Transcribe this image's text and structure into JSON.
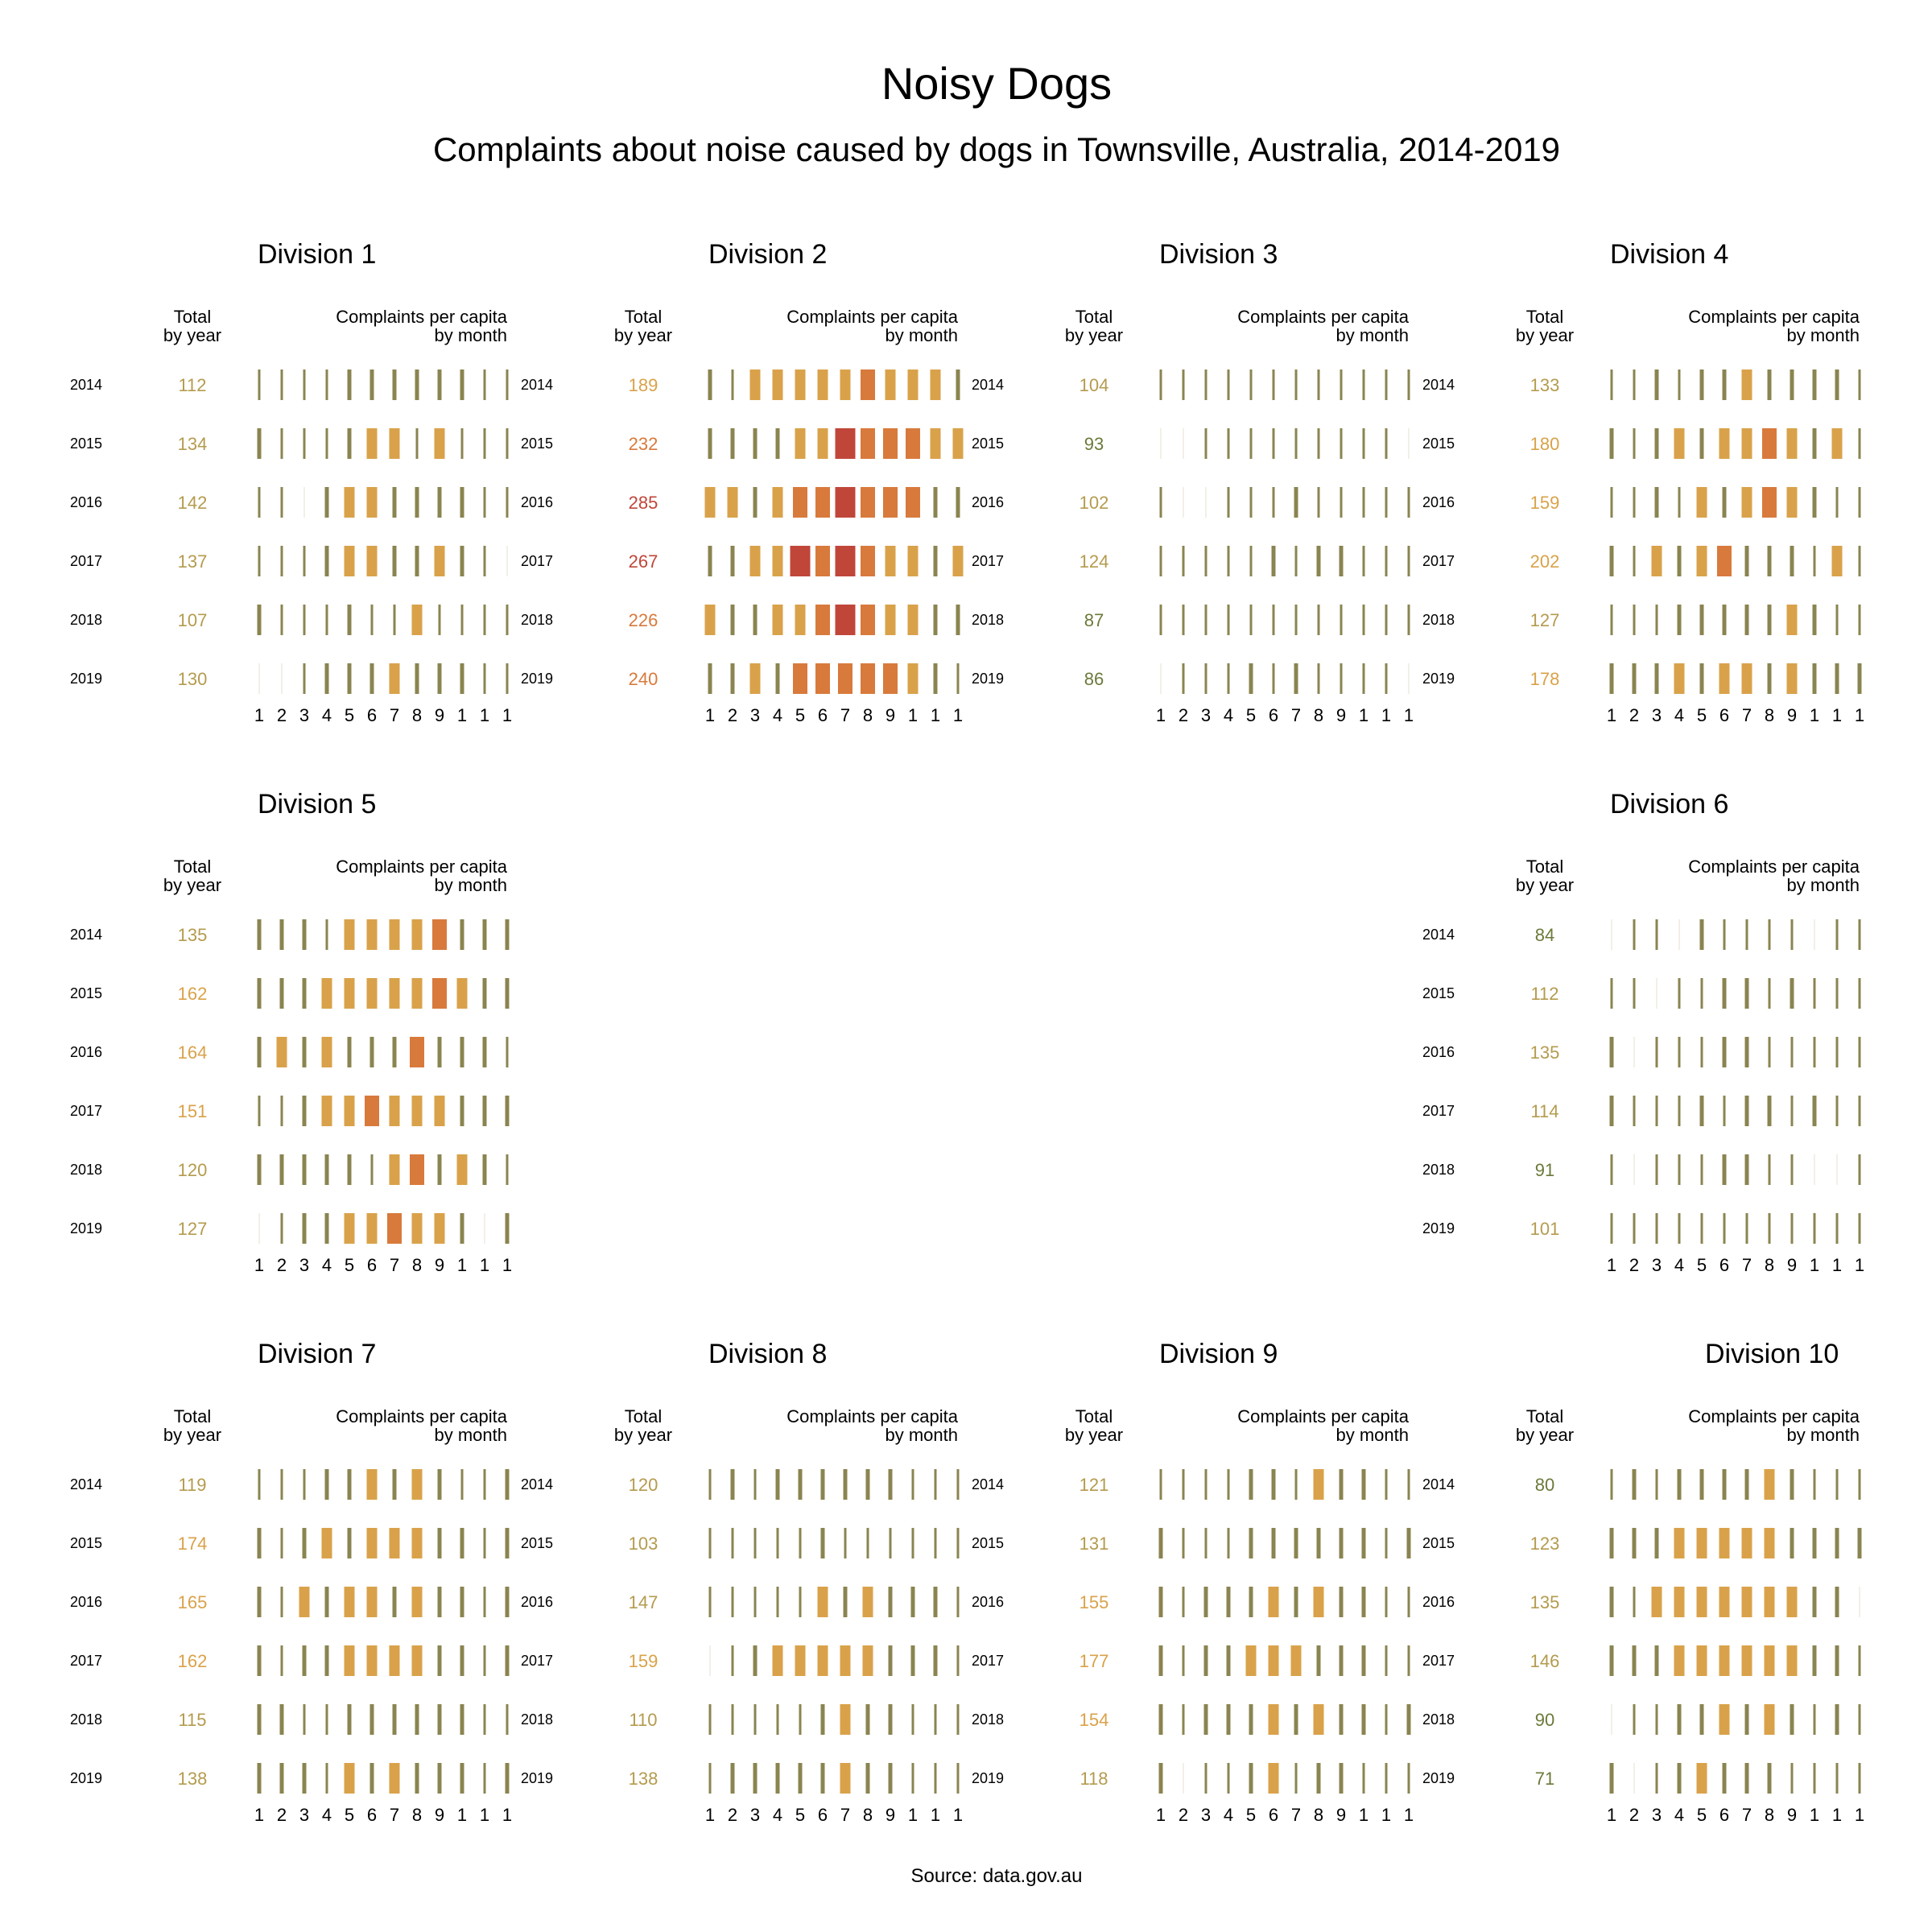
{
  "title": "Noisy Dogs",
  "subtitle": "Complaints about noise caused by dogs in Townsville, Australia, 2014-2019",
  "source": "Source: data.gov.au",
  "column_headers": {
    "total": [
      "Total",
      "by year"
    ],
    "monthly": [
      "Complaints per capita",
      "by month"
    ]
  },
  "colors": {
    "low": "#f2f0e6",
    "olive": "#8a8450",
    "orange": "#d9a24a",
    "dark_orange": "#d87a3c",
    "red": "#c0463a",
    "text_olive": "#6b7a3a"
  },
  "chart_data": {
    "type": "table",
    "years": [
      "2014",
      "2015",
      "2016",
      "2017",
      "2018",
      "2019"
    ],
    "month_labels": [
      "1",
      "2",
      "3",
      "4",
      "5",
      "6",
      "7",
      "8",
      "9",
      "1",
      "1",
      "1"
    ],
    "divisions": [
      {
        "name": "Division 1",
        "totals": [
          112,
          134,
          142,
          137,
          107,
          130
        ],
        "monthly_level": [
          [
            1,
            1,
            1,
            1,
            2,
            2,
            2,
            2,
            2,
            2,
            1,
            1
          ],
          [
            2,
            1,
            1,
            1,
            2,
            3,
            3,
            1,
            3,
            1,
            1,
            1
          ],
          [
            1,
            1,
            0,
            2,
            3,
            3,
            2,
            2,
            2,
            2,
            1,
            1
          ],
          [
            1,
            1,
            1,
            2,
            3,
            3,
            2,
            2,
            3,
            2,
            1,
            0
          ],
          [
            2,
            1,
            1,
            1,
            2,
            1,
            1,
            3,
            1,
            1,
            1,
            1
          ],
          [
            0,
            0,
            1,
            2,
            2,
            2,
            3,
            2,
            2,
            2,
            1,
            1
          ]
        ]
      },
      {
        "name": "Division 2",
        "totals": [
          189,
          232,
          285,
          267,
          226,
          240
        ],
        "monthly_level": [
          [
            2,
            1,
            3,
            3,
            3,
            3,
            3,
            4,
            3,
            3,
            3,
            2
          ],
          [
            2,
            2,
            2,
            2,
            3,
            3,
            5,
            4,
            4,
            4,
            3,
            3
          ],
          [
            3,
            3,
            2,
            3,
            4,
            4,
            5,
            4,
            4,
            4,
            2,
            2
          ],
          [
            2,
            2,
            3,
            3,
            5,
            4,
            5,
            4,
            3,
            3,
            2,
            3
          ],
          [
            3,
            2,
            2,
            3,
            3,
            4,
            5,
            4,
            3,
            3,
            2,
            2
          ],
          [
            2,
            2,
            3,
            2,
            4,
            4,
            4,
            4,
            4,
            3,
            2,
            1
          ]
        ]
      },
      {
        "name": "Division 3",
        "totals": [
          104,
          93,
          102,
          124,
          87,
          86
        ],
        "monthly_level": [
          [
            1,
            1,
            1,
            1,
            1,
            1,
            1,
            1,
            1,
            1,
            1,
            1
          ],
          [
            0,
            0,
            1,
            1,
            1,
            1,
            1,
            1,
            1,
            1,
            1,
            0
          ],
          [
            1,
            0,
            0,
            1,
            1,
            1,
            2,
            1,
            1,
            1,
            1,
            1
          ],
          [
            1,
            1,
            1,
            1,
            1,
            2,
            1,
            2,
            2,
            1,
            1,
            1
          ],
          [
            1,
            1,
            1,
            1,
            1,
            1,
            1,
            1,
            1,
            1,
            1,
            1
          ],
          [
            0,
            1,
            1,
            1,
            2,
            1,
            2,
            1,
            1,
            1,
            1,
            0
          ]
        ]
      },
      {
        "name": "Division 4",
        "totals": [
          133,
          180,
          159,
          202,
          127,
          178
        ],
        "monthly_level": [
          [
            1,
            1,
            2,
            1,
            2,
            2,
            3,
            2,
            2,
            2,
            2,
            1
          ],
          [
            2,
            1,
            2,
            3,
            2,
            3,
            3,
            4,
            3,
            2,
            3,
            1
          ],
          [
            1,
            1,
            2,
            1,
            3,
            2,
            3,
            4,
            3,
            2,
            1,
            1
          ],
          [
            2,
            1,
            3,
            2,
            3,
            4,
            2,
            2,
            2,
            1,
            3,
            1
          ],
          [
            1,
            1,
            1,
            2,
            2,
            2,
            2,
            2,
            3,
            2,
            1,
            1
          ],
          [
            2,
            2,
            2,
            3,
            2,
            3,
            3,
            2,
            3,
            2,
            2,
            2
          ]
        ]
      },
      {
        "name": "Division 5",
        "totals": [
          135,
          162,
          164,
          151,
          120,
          127
        ],
        "monthly_level": [
          [
            2,
            2,
            2,
            1,
            3,
            3,
            3,
            3,
            4,
            2,
            2,
            2
          ],
          [
            2,
            2,
            2,
            3,
            3,
            3,
            3,
            3,
            4,
            3,
            2,
            2
          ],
          [
            2,
            3,
            2,
            3,
            2,
            2,
            2,
            4,
            2,
            2,
            2,
            1
          ],
          [
            1,
            1,
            2,
            3,
            3,
            4,
            3,
            3,
            3,
            2,
            2,
            2
          ],
          [
            2,
            2,
            2,
            2,
            2,
            1,
            3,
            4,
            2,
            3,
            2,
            1
          ],
          [
            0,
            1,
            2,
            2,
            3,
            3,
            4,
            3,
            3,
            2,
            0,
            2
          ]
        ]
      },
      {
        "name": "Division 6",
        "totals": [
          84,
          112,
          135,
          114,
          91,
          101
        ],
        "monthly_level": [
          [
            0,
            1,
            1,
            0,
            2,
            1,
            1,
            1,
            1,
            0,
            1,
            1
          ],
          [
            1,
            1,
            0,
            1,
            1,
            2,
            2,
            1,
            2,
            1,
            1,
            1
          ],
          [
            2,
            0,
            1,
            1,
            1,
            2,
            2,
            1,
            1,
            1,
            1,
            1
          ],
          [
            2,
            1,
            1,
            1,
            2,
            1,
            2,
            2,
            1,
            2,
            1,
            1
          ],
          [
            1,
            0,
            1,
            1,
            1,
            2,
            2,
            1,
            1,
            0,
            0,
            1
          ],
          [
            1,
            1,
            1,
            1,
            1,
            1,
            1,
            1,
            1,
            1,
            1,
            1
          ]
        ]
      },
      {
        "name": "Division 7",
        "totals": [
          119,
          174,
          165,
          162,
          115,
          138
        ],
        "monthly_level": [
          [
            1,
            1,
            1,
            2,
            2,
            3,
            2,
            3,
            2,
            1,
            1,
            2
          ],
          [
            2,
            1,
            2,
            3,
            2,
            3,
            3,
            3,
            2,
            2,
            1,
            2
          ],
          [
            2,
            1,
            3,
            2,
            3,
            3,
            2,
            3,
            2,
            2,
            1,
            2
          ],
          [
            2,
            1,
            2,
            2,
            3,
            3,
            3,
            3,
            2,
            2,
            1,
            2
          ],
          [
            2,
            2,
            1,
            1,
            2,
            2,
            2,
            2,
            2,
            2,
            1,
            1
          ],
          [
            2,
            2,
            2,
            1,
            3,
            2,
            3,
            2,
            2,
            2,
            1,
            2
          ]
        ]
      },
      {
        "name": "Division 8",
        "totals": [
          120,
          103,
          147,
          159,
          110,
          138
        ],
        "monthly_level": [
          [
            1,
            2,
            1,
            2,
            2,
            2,
            2,
            2,
            2,
            1,
            1,
            1
          ],
          [
            1,
            1,
            1,
            1,
            1,
            2,
            1,
            1,
            1,
            1,
            1,
            1
          ],
          [
            1,
            1,
            1,
            1,
            1,
            3,
            2,
            3,
            2,
            2,
            2,
            1
          ],
          [
            0,
            1,
            2,
            3,
            3,
            3,
            3,
            3,
            2,
            2,
            2,
            1
          ],
          [
            1,
            1,
            1,
            1,
            1,
            2,
            3,
            2,
            2,
            1,
            1,
            1
          ],
          [
            1,
            2,
            2,
            2,
            2,
            2,
            3,
            2,
            2,
            1,
            1,
            1
          ]
        ]
      },
      {
        "name": "Division 9",
        "totals": [
          121,
          131,
          155,
          177,
          154,
          118
        ],
        "monthly_level": [
          [
            1,
            1,
            1,
            1,
            2,
            2,
            1,
            3,
            2,
            2,
            1,
            1
          ],
          [
            2,
            1,
            1,
            1,
            2,
            2,
            2,
            2,
            2,
            2,
            1,
            2
          ],
          [
            2,
            1,
            2,
            2,
            2,
            3,
            2,
            3,
            2,
            2,
            1,
            1
          ],
          [
            2,
            1,
            2,
            2,
            3,
            3,
            3,
            2,
            2,
            2,
            1,
            1
          ],
          [
            2,
            1,
            2,
            2,
            2,
            3,
            2,
            3,
            2,
            2,
            1,
            2
          ],
          [
            2,
            0,
            1,
            1,
            2,
            3,
            1,
            2,
            2,
            1,
            1,
            1
          ]
        ]
      },
      {
        "name": "Division 10",
        "totals": [
          80,
          123,
          135,
          146,
          90,
          71
        ],
        "monthly_level": [
          [
            1,
            2,
            1,
            2,
            2,
            2,
            2,
            3,
            2,
            1,
            1,
            1
          ],
          [
            2,
            2,
            2,
            3,
            3,
            3,
            3,
            3,
            2,
            2,
            2,
            2
          ],
          [
            2,
            1,
            3,
            3,
            3,
            3,
            3,
            3,
            3,
            2,
            2,
            0
          ],
          [
            2,
            2,
            2,
            3,
            3,
            3,
            3,
            3,
            3,
            2,
            2,
            1
          ],
          [
            0,
            1,
            1,
            2,
            2,
            3,
            2,
            3,
            2,
            1,
            2,
            1
          ],
          [
            2,
            0,
            1,
            2,
            3,
            2,
            2,
            2,
            1,
            1,
            1,
            1
          ]
        ]
      }
    ]
  }
}
